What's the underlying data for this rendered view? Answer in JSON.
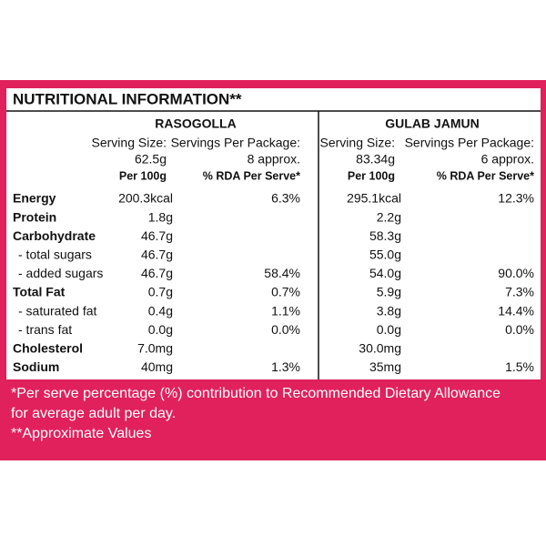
{
  "title": "NUTRITIONAL INFORMATION**",
  "products": [
    {
      "name": "RASOGOLLA",
      "serving_size_label": "Serving Size:",
      "serving_size": "62.5g",
      "servings_label": "Servings Per Package:",
      "servings": "8 approx.",
      "per100_label": "Per 100g",
      "rda_label": "% RDA Per Serve*",
      "values": [
        [
          "200.3kcal",
          "6.3%"
        ],
        [
          "1.8g",
          null
        ],
        [
          "46.7g",
          null
        ],
        [
          "46.7g",
          null
        ],
        [
          "46.7g",
          "58.4%"
        ],
        [
          "0.7g",
          "0.7%"
        ],
        [
          "0.4g",
          "1.1%"
        ],
        [
          "0.0g",
          "0.0%"
        ],
        [
          "7.0mg",
          null
        ],
        [
          "40mg",
          "1.3%"
        ]
      ]
    },
    {
      "name": "GULAB JAMUN",
      "serving_size_label": "Serving Size:",
      "serving_size": "83.34g",
      "servings_label": "Servings Per Package:",
      "servings": "6 approx.",
      "per100_label": "Per 100g",
      "rda_label": "% RDA Per Serve*",
      "values": [
        [
          "295.1kcal",
          "12.3%"
        ],
        [
          "2.2g",
          null
        ],
        [
          "58.3g",
          null
        ],
        [
          "55.0g",
          null
        ],
        [
          "54.0g",
          "90.0%"
        ],
        [
          "5.9g",
          "7.3%"
        ],
        [
          "3.8g",
          "14.4%"
        ],
        [
          "0.0g",
          "0.0%"
        ],
        [
          "30.0mg",
          null
        ],
        [
          "35mg",
          "1.5%"
        ]
      ]
    }
  ],
  "nutrients": [
    {
      "label": "Energy",
      "bold": true
    },
    {
      "label": "Protein",
      "bold": true
    },
    {
      "label": "Carbohydrate",
      "bold": true
    },
    {
      "label": "- total sugars",
      "bold": false
    },
    {
      "label": "- added sugars",
      "bold": false
    },
    {
      "label": "Total Fat",
      "bold": true
    },
    {
      "label": "- saturated fat",
      "bold": false
    },
    {
      "label": "- trans fat",
      "bold": false
    },
    {
      "label": "Cholesterol",
      "bold": true
    },
    {
      "label": "Sodium",
      "bold": true
    }
  ],
  "footnotes": [
    "*Per serve percentage (%) contribution to Recommended Dietary Allowance",
    "for average adult per day.",
    "**Approximate Values"
  ]
}
